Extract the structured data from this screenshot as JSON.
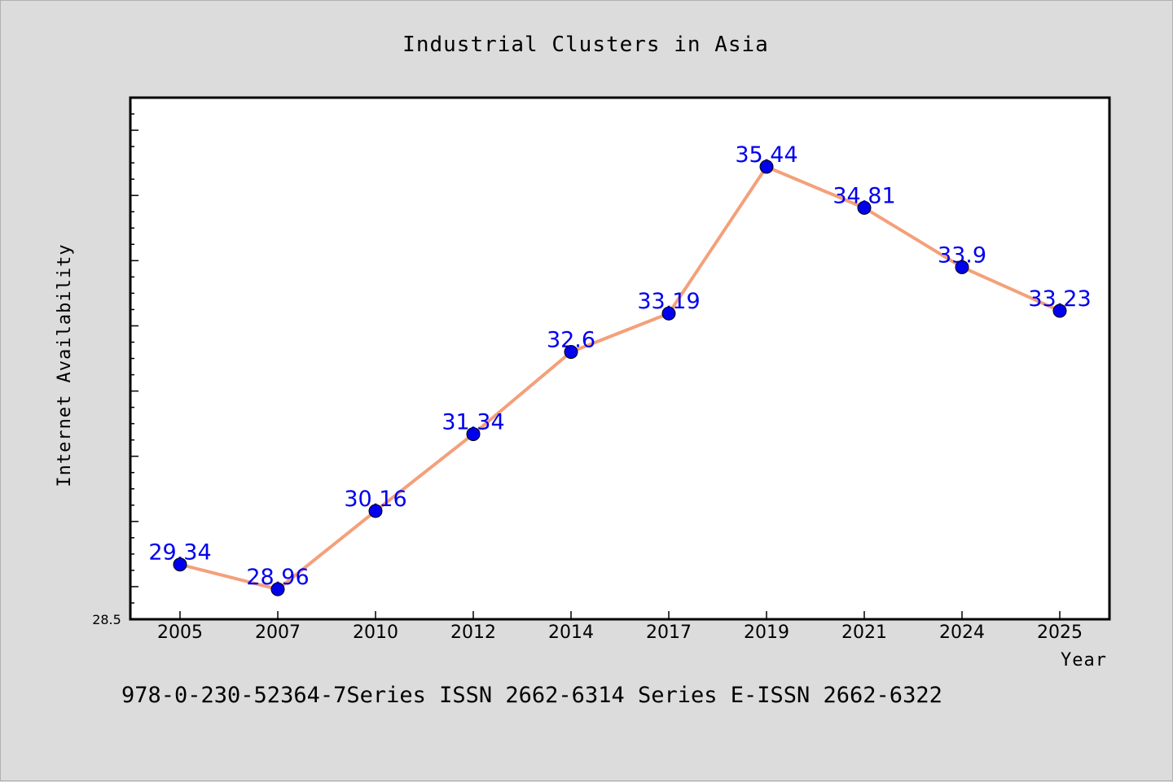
{
  "chart_data": {
    "type": "line",
    "title": "Industrial Clusters in Asia",
    "xlabel": "Year",
    "ylabel": "Internet Availability",
    "ylim": [
      28.5,
      36.5
    ],
    "y_axis_label_shown": "28.5",
    "categories": [
      "2005",
      "2007",
      "2010",
      "2012",
      "2014",
      "2017",
      "2019",
      "2021",
      "2024",
      "2025"
    ],
    "series": [
      {
        "values": [
          29.34,
          28.96,
          30.16,
          31.34,
          32.6,
          33.19,
          35.44,
          34.81,
          33.9,
          33.23
        ],
        "value_labels": [
          "29.34",
          "28.96",
          "30.16",
          "31.34",
          "32.6",
          "33.19",
          "35.44",
          "34.81",
          "33.9",
          "33.23"
        ],
        "line_color": "#f4a07a",
        "marker_color": "#0000ee",
        "label_color": "#0000ee"
      }
    ],
    "grid": false,
    "legend": "none"
  },
  "footer": {
    "text": "978-0-230-52364-7Series ISSN 2662-6314 Series E-ISSN 2662-6322"
  }
}
